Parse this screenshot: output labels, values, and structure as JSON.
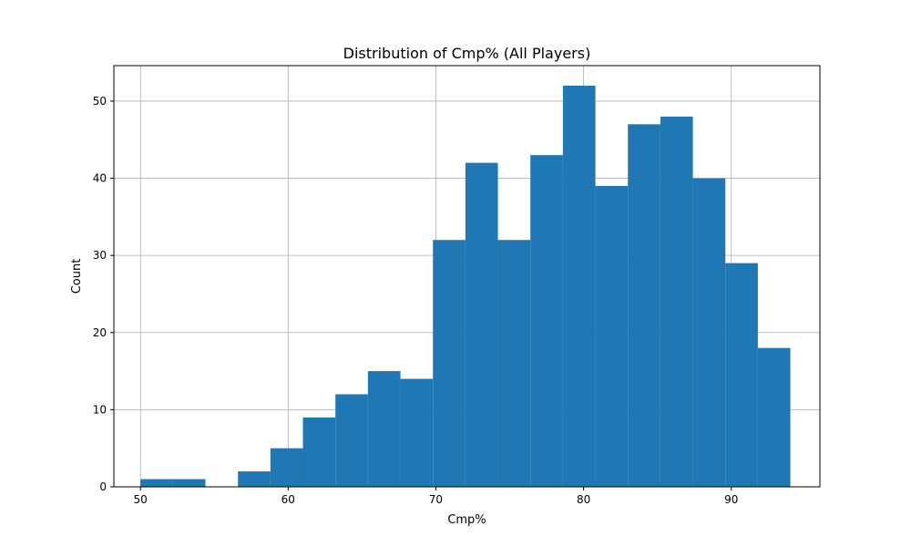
{
  "chart_data": {
    "type": "bar",
    "subtype": "histogram",
    "title": "Distribution of Cmp% (All Players)",
    "xlabel": "Cmp%",
    "ylabel": "Count",
    "xlim": [
      48.2,
      96.0
    ],
    "ylim": [
      0,
      54.6
    ],
    "xticks": [
      50,
      60,
      70,
      80,
      90
    ],
    "yticks": [
      0,
      10,
      20,
      30,
      40,
      50
    ],
    "grid": true,
    "color": "#1f77b4",
    "bin_start": 50.0,
    "bin_width": 2.2,
    "counts": [
      1,
      1,
      0,
      2,
      5,
      9,
      12,
      15,
      14,
      32,
      42,
      32,
      43,
      52,
      39,
      47,
      48,
      40,
      29,
      18
    ]
  }
}
